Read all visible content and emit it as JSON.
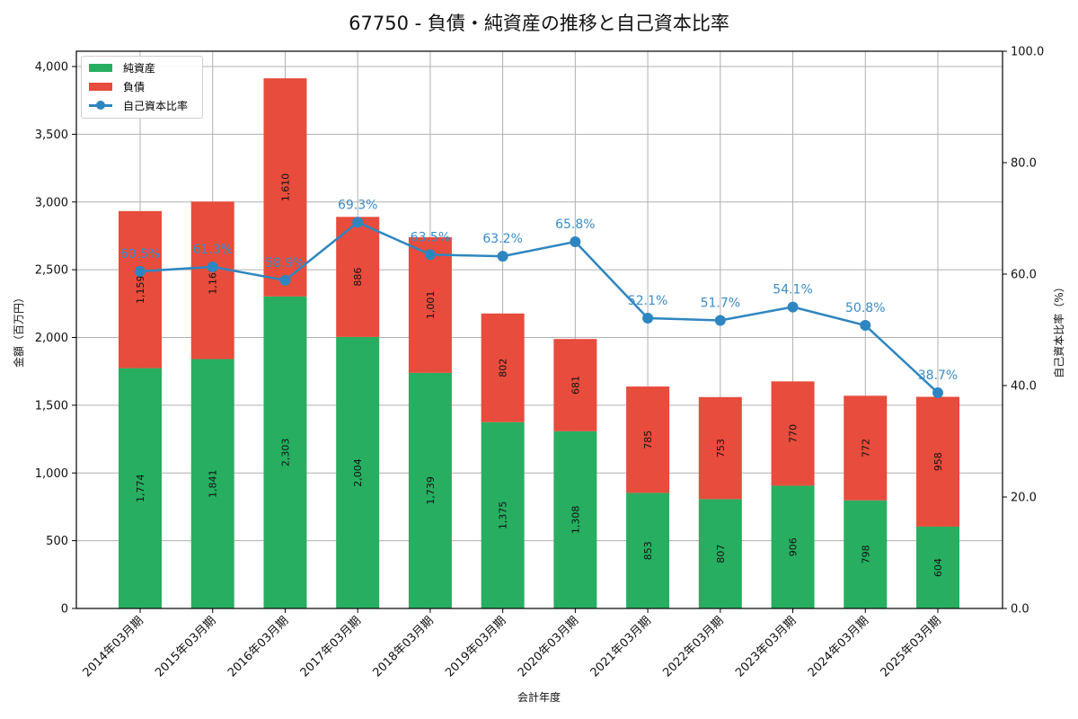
{
  "title": "67750 - 負債・純資産の推移と自己資本比率",
  "colors": {
    "net_assets": "#27ae60",
    "liabilities": "#e74c3c",
    "equity_ratio": "#2e86c1",
    "grid": "#b0b0b0"
  },
  "legend": {
    "items": [
      {
        "label": "純資産",
        "type": "bar",
        "color": "#27ae60"
      },
      {
        "label": "負債",
        "type": "bar",
        "color": "#e74c3c"
      },
      {
        "label": "自己資本比率",
        "type": "line",
        "color": "#2e86c1"
      }
    ]
  },
  "axes": {
    "xlabel": "会計年度",
    "ylabel_left": "金額（百万円）",
    "ylabel_right": "自己資本比率（%）",
    "left_ticks": [
      "0",
      "500",
      "1,000",
      "1,500",
      "2,000",
      "2,500",
      "3,000",
      "3,500",
      "4,000"
    ],
    "right_ticks": [
      "0.0",
      "20.0",
      "40.0",
      "60.0",
      "80.0",
      "100.0"
    ]
  },
  "chart_data": {
    "type": "bar",
    "title": "67750 - 負債・純資産の推移と自己資本比率",
    "xlabel": "会計年度",
    "ylabel": "金額（百万円）",
    "ylabel_right": "自己資本比率（%）",
    "ylim": [
      0,
      4100
    ],
    "ylim_right": [
      0,
      100
    ],
    "grid": true,
    "legend_position": "upper left",
    "stacked": true,
    "categories": [
      "2014年03月期",
      "2015年03月期",
      "2016年03月期",
      "2017年03月期",
      "2018年03月期",
      "2019年03月期",
      "2020年03月期",
      "2021年03月期",
      "2022年03月期",
      "2023年03月期",
      "2024年03月期",
      "2025年03月期"
    ],
    "series": [
      {
        "name": "純資産",
        "type": "bar",
        "axis": "left",
        "values": [
          1774,
          1841,
          2303,
          2004,
          1739,
          1375,
          1308,
          853,
          807,
          906,
          798,
          604
        ]
      },
      {
        "name": "負債",
        "type": "bar",
        "axis": "left",
        "values": [
          1159,
          1162,
          1610,
          886,
          1001,
          802,
          681,
          785,
          753,
          770,
          772,
          958
        ]
      },
      {
        "name": "自己資本比率",
        "type": "line",
        "axis": "right",
        "values": [
          60.5,
          61.3,
          58.9,
          69.3,
          63.5,
          63.2,
          65.8,
          52.1,
          51.7,
          54.1,
          50.8,
          38.7
        ]
      }
    ]
  }
}
